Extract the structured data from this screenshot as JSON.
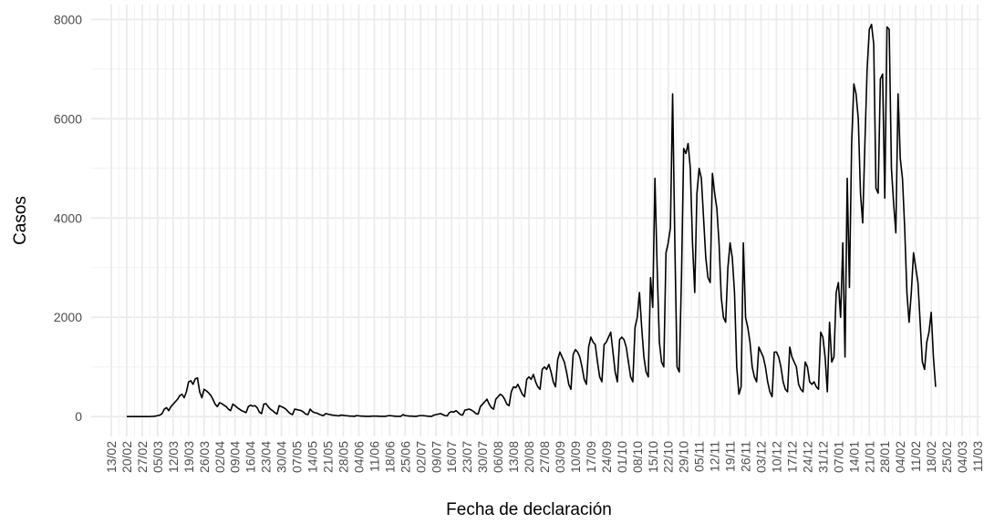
{
  "chart_data": {
    "type": "line",
    "x_label": "Fecha de declaración",
    "y_label": "Casos",
    "color": "#000000",
    "grid": true,
    "ylim": [
      -400,
      8300
    ],
    "yticks": [
      0,
      2000,
      4000,
      6000,
      8000
    ],
    "categories": [
      "13/02",
      null,
      null,
      null,
      null,
      null,
      null,
      "20/02",
      null,
      null,
      null,
      null,
      null,
      null,
      "27/02",
      null,
      null,
      null,
      null,
      null,
      null,
      "05/03",
      null,
      null,
      null,
      null,
      null,
      null,
      "12/03",
      null,
      null,
      null,
      null,
      null,
      null,
      "19/03",
      null,
      null,
      null,
      null,
      null,
      null,
      "26/03",
      null,
      null,
      null,
      null,
      null,
      null,
      "02/04",
      null,
      null,
      null,
      null,
      null,
      null,
      "09/04",
      null,
      null,
      null,
      null,
      null,
      null,
      "16/04",
      null,
      null,
      null,
      null,
      null,
      null,
      "23/04",
      null,
      null,
      null,
      null,
      null,
      null,
      "30/04",
      null,
      null,
      null,
      null,
      null,
      null,
      "07/05",
      null,
      null,
      null,
      null,
      null,
      null,
      "14/05",
      null,
      null,
      null,
      null,
      null,
      null,
      "21/05",
      null,
      null,
      null,
      null,
      null,
      null,
      "28/05",
      null,
      null,
      null,
      null,
      null,
      null,
      "04/06",
      null,
      null,
      null,
      null,
      null,
      null,
      "11/06",
      null,
      null,
      null,
      null,
      null,
      null,
      "18/06",
      null,
      null,
      null,
      null,
      null,
      null,
      "25/06",
      null,
      null,
      null,
      null,
      null,
      null,
      "02/07",
      null,
      null,
      null,
      null,
      null,
      null,
      "09/07",
      null,
      null,
      null,
      null,
      null,
      null,
      "16/07",
      null,
      null,
      null,
      null,
      null,
      null,
      "23/07",
      null,
      null,
      null,
      null,
      null,
      null,
      "30/07",
      null,
      null,
      null,
      null,
      null,
      null,
      "06/08",
      null,
      null,
      null,
      null,
      null,
      null,
      "13/08",
      null,
      null,
      null,
      null,
      null,
      null,
      "20/08",
      null,
      null,
      null,
      null,
      null,
      null,
      "27/08",
      null,
      null,
      null,
      null,
      null,
      null,
      "03/09",
      null,
      null,
      null,
      null,
      null,
      null,
      "10/09",
      null,
      null,
      null,
      null,
      null,
      null,
      "17/09",
      null,
      null,
      null,
      null,
      null,
      null,
      "24/09",
      null,
      null,
      null,
      null,
      null,
      null,
      "01/10",
      null,
      null,
      null,
      null,
      null,
      null,
      "08/10",
      null,
      null,
      null,
      null,
      null,
      null,
      "15/10",
      null,
      null,
      null,
      null,
      null,
      null,
      "22/10",
      null,
      null,
      null,
      null,
      null,
      null,
      "29/10",
      null,
      null,
      null,
      null,
      null,
      null,
      "05/11",
      null,
      null,
      null,
      null,
      null,
      null,
      "12/11",
      null,
      null,
      null,
      null,
      null,
      null,
      "19/11",
      null,
      null,
      null,
      null,
      null,
      null,
      "26/11",
      null,
      null,
      null,
      null,
      null,
      null,
      "03/12",
      null,
      null,
      null,
      null,
      null,
      null,
      "10/12",
      null,
      null,
      null,
      null,
      null,
      null,
      "17/12",
      null,
      null,
      null,
      null,
      null,
      null,
      "24/12",
      null,
      null,
      null,
      null,
      null,
      null,
      "31/12",
      null,
      null,
      null,
      null,
      null,
      null,
      "07/01",
      null,
      null,
      null,
      null,
      null,
      null,
      "14/01",
      null,
      null,
      null,
      null,
      null,
      null,
      "21/01",
      null,
      null,
      null,
      null,
      null,
      null,
      "28/01",
      null,
      null,
      null,
      null,
      null,
      null,
      "04/02",
      null,
      null,
      null,
      null,
      null,
      null,
      "11/02",
      null,
      null,
      null,
      null,
      null,
      null,
      "18/02",
      null,
      null,
      null,
      null,
      null,
      null,
      "25/02",
      null,
      null,
      null,
      null,
      null,
      null,
      "04/03",
      null,
      null,
      null,
      null,
      null,
      null,
      "11/03"
    ],
    "values": [
      null,
      null,
      null,
      null,
      null,
      null,
      null,
      0,
      0,
      0,
      0,
      0,
      0,
      0,
      0,
      0,
      0,
      0,
      2,
      5,
      10,
      20,
      30,
      60,
      150,
      180,
      120,
      200,
      250,
      300,
      350,
      420,
      450,
      380,
      500,
      700,
      720,
      650,
      760,
      780,
      500,
      380,
      550,
      520,
      480,
      430,
      350,
      250,
      200,
      280,
      260,
      230,
      200,
      150,
      120,
      250,
      220,
      180,
      150,
      120,
      100,
      80,
      200,
      230,
      210,
      220,
      180,
      90,
      60,
      250,
      260,
      200,
      150,
      120,
      80,
      50,
      220,
      200,
      180,
      150,
      100,
      60,
      40,
      150,
      140,
      130,
      120,
      90,
      50,
      40,
      150,
      100,
      80,
      70,
      50,
      30,
      20,
      60,
      50,
      40,
      30,
      25,
      20,
      15,
      30,
      25,
      20,
      15,
      10,
      10,
      5,
      20,
      15,
      10,
      10,
      5,
      5,
      5,
      10,
      10,
      10,
      8,
      5,
      5,
      5,
      15,
      20,
      15,
      10,
      5,
      5,
      5,
      40,
      20,
      15,
      10,
      10,
      5,
      5,
      15,
      20,
      20,
      15,
      10,
      5,
      5,
      30,
      40,
      50,
      60,
      40,
      20,
      15,
      80,
      100,
      90,
      120,
      80,
      40,
      30,
      130,
      140,
      150,
      130,
      100,
      60,
      50,
      200,
      250,
      300,
      350,
      250,
      180,
      150,
      350,
      400,
      450,
      420,
      350,
      250,
      220,
      500,
      600,
      580,
      650,
      550,
      450,
      400,
      750,
      800,
      750,
      850,
      700,
      600,
      550,
      950,
      1000,
      950,
      1050,
      900,
      700,
      600,
      1150,
      1300,
      1200,
      1100,
      900,
      650,
      550,
      1250,
      1350,
      1300,
      1200,
      1000,
      750,
      650,
      1400,
      1600,
      1500,
      1450,
      1100,
      800,
      700,
      1450,
      1500,
      1600,
      1700,
      1300,
      900,
      700,
      1550,
      1600,
      1550,
      1400,
      1100,
      800,
      700,
      1800,
      2000,
      2500,
      1800,
      1200,
      900,
      800,
      2800,
      2200,
      4800,
      3000,
      1500,
      1100,
      1000,
      3300,
      3500,
      3800,
      6500,
      3500,
      1000,
      900,
      2800,
      5400,
      5300,
      5500,
      5000,
      3500,
      2500,
      4500,
      5000,
      4800,
      4000,
      3200,
      2800,
      2700,
      4900,
      4500,
      4200,
      3500,
      2400,
      2000,
      1900,
      3000,
      3500,
      3200,
      2500,
      1000,
      450,
      600,
      3500,
      2000,
      1800,
      1500,
      1000,
      800,
      700,
      1400,
      1300,
      1200,
      1000,
      700,
      500,
      400,
      1300,
      1300,
      1200,
      1000,
      700,
      550,
      500,
      1400,
      1200,
      1100,
      1000,
      650,
      550,
      500,
      1100,
      1000,
      700,
      650,
      700,
      600,
      550,
      1700,
      1600,
      1200,
      500,
      1900,
      1100,
      1200,
      2500,
      2700,
      2000,
      3500,
      1200,
      4800,
      2600,
      5500,
      6700,
      6500,
      6000,
      4500,
      3900,
      5500,
      7000,
      7800,
      7900,
      7500,
      4600,
      4500,
      6800,
      6900,
      4400,
      7850,
      7800,
      5000,
      4300,
      3700,
      6500,
      5200,
      4800,
      3800,
      2500,
      1900,
      2500,
      3300,
      3000,
      2700,
      1900,
      1100,
      950,
      1500,
      1700,
      2100,
      1200,
      600,
      null,
      null,
      null,
      null,
      null,
      null,
      null,
      null,
      null,
      null,
      null,
      null,
      null,
      null,
      null,
      null,
      null,
      null,
      null
    ]
  }
}
